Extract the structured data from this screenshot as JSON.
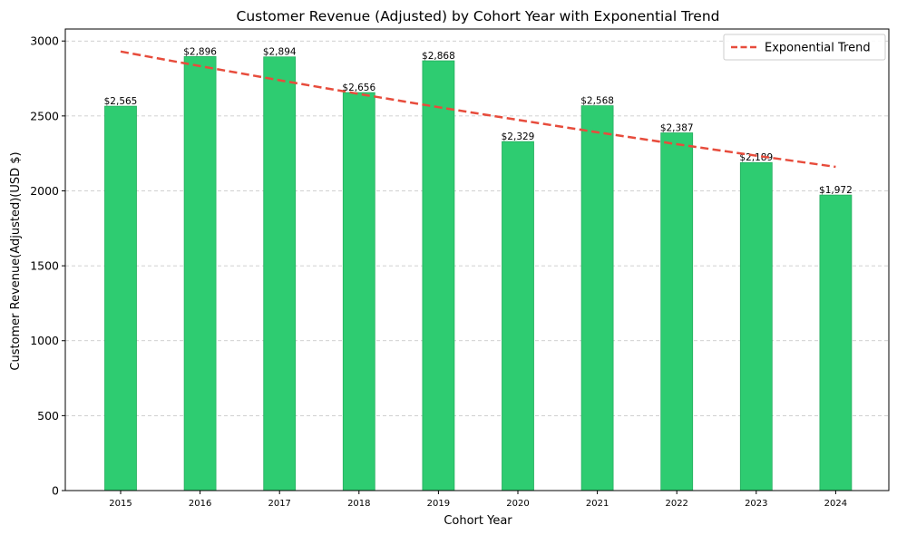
{
  "chart_data": {
    "type": "bar",
    "title": "Customer Revenue (Adjusted) by Cohort Year with Exponential Trend",
    "xlabel": "Cohort Year",
    "ylabel": "Customer Revenue(Adjusted)(USD $)",
    "categories": [
      "2015",
      "2016",
      "2017",
      "2018",
      "2019",
      "2020",
      "2021",
      "2022",
      "2023",
      "2024"
    ],
    "values": [
      2565,
      2896,
      2894,
      2656,
      2868,
      2329,
      2568,
      2387,
      2189,
      1972
    ],
    "data_labels": [
      "$2,565",
      "$2,896",
      "$2,894",
      "$2,656",
      "$2,868",
      "$2,329",
      "$2,568",
      "$2,387",
      "$2,189",
      "$1,972"
    ],
    "ylim": [
      0,
      3080
    ],
    "yticks": [
      0,
      500,
      1000,
      1500,
      2000,
      2500,
      3000
    ],
    "grid": "horizontal dashed",
    "bar_color": "#2ecc71",
    "bar_edge_color": "#27ae60",
    "trend": {
      "name": "Exponential Trend",
      "type": "exponential",
      "color": "#e74c3c",
      "style": "dashed",
      "start_value": 2930,
      "end_value": 2160
    },
    "legend": {
      "placement": "top-right",
      "entries": [
        "Exponential Trend"
      ]
    }
  }
}
